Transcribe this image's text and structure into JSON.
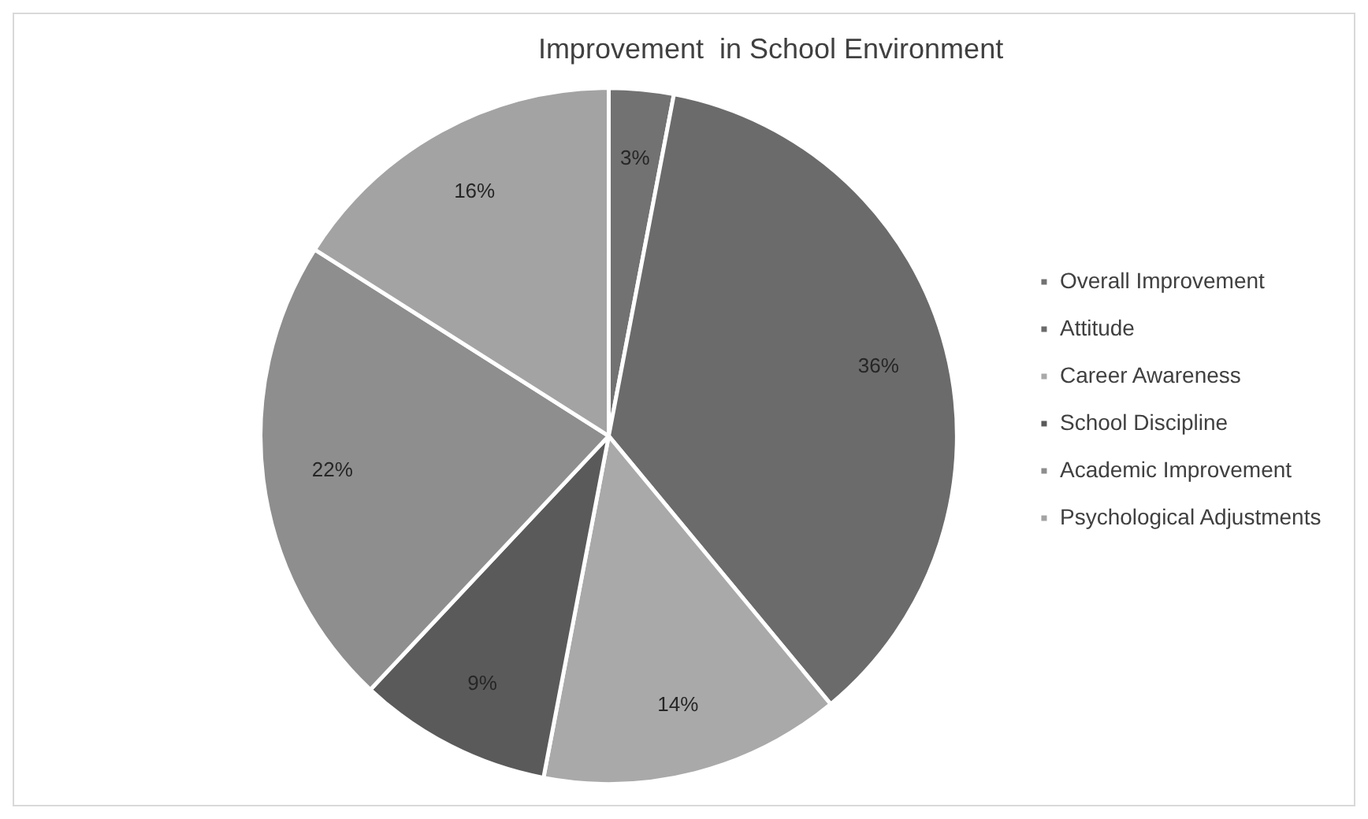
{
  "chart_data": {
    "type": "pie",
    "title": "Improvement  in School Environment",
    "categories": [
      "Overall Improvement",
      "Attitude",
      "Career Awareness",
      "School Discipline",
      "Academic Improvement",
      "Psychological Adjustments"
    ],
    "values": [
      3,
      36,
      14,
      9,
      22,
      16
    ],
    "colors": [
      "#727272",
      "#6b6b6b",
      "#a9a9a9",
      "#5a5a5a",
      "#8e8e8e",
      "#a3a3a3"
    ],
    "value_labels": [
      "3%",
      "36%",
      "14%",
      "9%",
      "22%",
      "16%"
    ],
    "legend": "right"
  }
}
